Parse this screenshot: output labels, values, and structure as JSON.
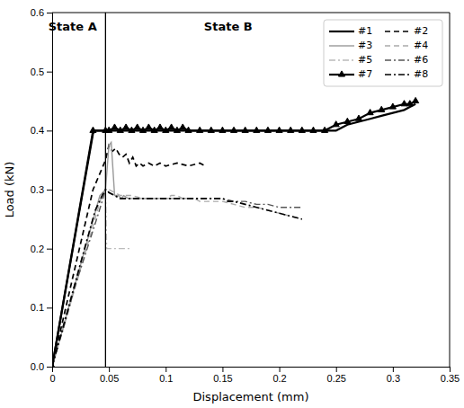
{
  "chart_data": {
    "type": "line",
    "xlabel": "Displacement (mm)",
    "ylabel": "Load (kN)",
    "xlim": [
      0,
      0.35
    ],
    "ylim": [
      0,
      0.6
    ],
    "xticks": [
      0,
      0.05,
      0.1,
      0.15,
      0.2,
      0.25,
      0.3,
      0.35
    ],
    "yticks": [
      {
        "value": 0,
        "label": "0.0"
      },
      0.1,
      0.2,
      0.3,
      0.4,
      0.5,
      0.6
    ],
    "grid": false,
    "legend": "upper right",
    "vline_x": 0.047,
    "annotations": [
      {
        "text": "State A",
        "x": 0.018,
        "y": 0.575
      },
      {
        "text": "State B",
        "x": 0.155,
        "y": 0.575
      }
    ],
    "series": [
      {
        "name": "#1",
        "color": "black",
        "line_style": "solid",
        "x": [
          0,
          0.036,
          0.038,
          0.047,
          0.048,
          0.25,
          0.26,
          0.27,
          0.28,
          0.29,
          0.3,
          0.31,
          0.315,
          0.32
        ],
        "values": [
          0,
          0.395,
          0.4,
          0.4,
          0.4,
          0.4,
          0.41,
          0.415,
          0.42,
          0.425,
          0.43,
          0.435,
          0.44,
          0.445
        ]
      },
      {
        "name": "#2",
        "color": "black",
        "line_style": "dashed",
        "x": [
          0,
          0.036,
          0.047,
          0.05,
          0.053,
          0.056,
          0.059,
          0.062,
          0.065,
          0.068,
          0.071,
          0.074,
          0.077,
          0.08,
          0.085,
          0.09,
          0.095,
          0.1,
          0.11,
          0.12,
          0.13,
          0.135
        ],
        "values": [
          0,
          0.3,
          0.35,
          0.375,
          0.365,
          0.37,
          0.36,
          0.355,
          0.36,
          0.345,
          0.355,
          0.34,
          0.345,
          0.34,
          0.345,
          0.34,
          0.345,
          0.34,
          0.345,
          0.34,
          0.345,
          0.34
        ]
      },
      {
        "name": "#3",
        "color": "#999999",
        "line_style": "solid",
        "x": [
          0,
          0.042,
          0.047,
          0.05,
          0.052,
          0.055,
          0.058,
          0.061,
          0.063,
          0.067,
          0.07,
          0.075,
          0.08,
          0.09,
          0.1,
          0.11,
          0.115,
          0.12
        ],
        "values": [
          0,
          0.29,
          0.3,
          0.375,
          0.38,
          0.29,
          0.29,
          0.285,
          0.29,
          0.285,
          0.285,
          0.285,
          0.285,
          0.285,
          0.285,
          0.285,
          0.285,
          0.285
        ]
      },
      {
        "name": "#4",
        "color": "#aaaaaa",
        "line_style": "dashed",
        "x": [
          0,
          0.043,
          0.047,
          0.05,
          0.055,
          0.06,
          0.07,
          0.08,
          0.09,
          0.1,
          0.105,
          0.11,
          0.115,
          0.12,
          0.125,
          0.13,
          0.14,
          0.15,
          0.16,
          0.17,
          0.18,
          0.19,
          0.2,
          0.21,
          0.22
        ],
        "values": [
          0,
          0.285,
          0.3,
          0.3,
          0.295,
          0.29,
          0.29,
          0.285,
          0.285,
          0.285,
          0.29,
          0.29,
          0.285,
          0.285,
          0.285,
          0.28,
          0.28,
          0.28,
          0.275,
          0.27,
          0.27,
          0.265,
          0.26,
          0.255,
          0.25
        ]
      },
      {
        "name": "#5",
        "color": "#bbbbbb",
        "line_style": "dashdot",
        "x": [
          0,
          0.01,
          0.02,
          0.03,
          0.035,
          0.04,
          0.045,
          0.047,
          0.048,
          0.052,
          0.055,
          0.06,
          0.065,
          0.07
        ],
        "values": [
          0,
          0.07,
          0.14,
          0.21,
          0.245,
          0.27,
          0.29,
          0.3,
          0.2,
          0.2,
          0.2,
          0.2,
          0.2,
          0.2
        ]
      },
      {
        "name": "#6",
        "color": "#555555",
        "line_style": "dashdot",
        "x": [
          0,
          0.005,
          0.01,
          0.015,
          0.02,
          0.025,
          0.03,
          0.035,
          0.04,
          0.044,
          0.047,
          0.048,
          0.05,
          0.055,
          0.06,
          0.07,
          0.08,
          0.09,
          0.1,
          0.11,
          0.12,
          0.13,
          0.14,
          0.15,
          0.16,
          0.17,
          0.18,
          0.19,
          0.2,
          0.21,
          0.22
        ],
        "values": [
          0,
          0.035,
          0.065,
          0.1,
          0.135,
          0.165,
          0.195,
          0.225,
          0.255,
          0.28,
          0.3,
          0.3,
          0.295,
          0.29,
          0.285,
          0.285,
          0.285,
          0.285,
          0.285,
          0.285,
          0.285,
          0.285,
          0.285,
          0.285,
          0.28,
          0.28,
          0.275,
          0.275,
          0.27,
          0.27,
          0.27
        ]
      },
      {
        "name": "#7",
        "color": "black",
        "line_style": "solid",
        "marker": "triangle",
        "x": [
          0,
          0.036,
          0.047,
          0.05,
          0.055,
          0.06,
          0.065,
          0.07,
          0.075,
          0.08,
          0.085,
          0.09,
          0.095,
          0.1,
          0.105,
          0.11,
          0.115,
          0.12,
          0.13,
          0.14,
          0.15,
          0.16,
          0.17,
          0.18,
          0.19,
          0.2,
          0.21,
          0.22,
          0.23,
          0.24,
          0.25,
          0.26,
          0.27,
          0.28,
          0.29,
          0.3,
          0.31,
          0.315,
          0.32
        ],
        "values": [
          0,
          0.4,
          0.4,
          0.4,
          0.405,
          0.4,
          0.405,
          0.4,
          0.405,
          0.4,
          0.405,
          0.4,
          0.405,
          0.4,
          0.405,
          0.4,
          0.405,
          0.4,
          0.4,
          0.4,
          0.4,
          0.4,
          0.4,
          0.4,
          0.4,
          0.4,
          0.4,
          0.4,
          0.4,
          0.4,
          0.41,
          0.415,
          0.42,
          0.43,
          0.435,
          0.44,
          0.445,
          0.445,
          0.45
        ]
      },
      {
        "name": "#8",
        "color": "black",
        "line_style": "dashdot",
        "x": [
          0,
          0.01,
          0.02,
          0.03,
          0.038,
          0.044,
          0.047,
          0.048,
          0.05,
          0.055,
          0.06,
          0.065,
          0.07,
          0.08,
          0.09,
          0.1,
          0.11,
          0.115,
          0.12,
          0.13,
          0.14,
          0.15,
          0.155,
          0.16,
          0.17,
          0.18,
          0.19,
          0.2,
          0.21,
          0.22
        ],
        "values": [
          0,
          0.07,
          0.14,
          0.21,
          0.265,
          0.29,
          0.3,
          0.3,
          0.295,
          0.29,
          0.285,
          0.285,
          0.285,
          0.285,
          0.285,
          0.285,
          0.285,
          0.285,
          0.285,
          0.285,
          0.285,
          0.285,
          0.28,
          0.28,
          0.275,
          0.27,
          0.265,
          0.26,
          0.255,
          0.25
        ]
      }
    ]
  }
}
